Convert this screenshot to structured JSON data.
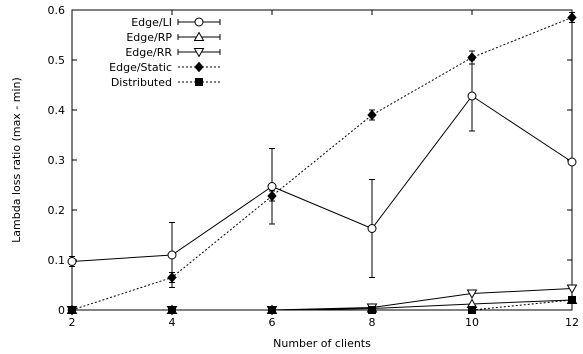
{
  "chart_data": {
    "type": "line",
    "title": "",
    "xlabel": "Number of clients",
    "ylabel": "Lambda loss ratio (max - min)",
    "xlim": [
      2,
      12
    ],
    "ylim": [
      0,
      0.6
    ],
    "x_ticks": [
      2,
      4,
      6,
      8,
      10,
      12
    ],
    "y_ticks": [
      0,
      0.1,
      0.2,
      0.3,
      0.4,
      0.5,
      0.6
    ],
    "x_tick_labels": [
      "2",
      "4",
      "6",
      "8",
      "10",
      "12"
    ],
    "y_tick_labels": [
      "0",
      "0.1",
      "0.2",
      "0.3",
      "0.4",
      "0.5",
      "0.6"
    ],
    "grid": false,
    "legend_position": "top-left",
    "series": [
      {
        "name": "Edge/LI",
        "marker": "open-circle",
        "line": "solid",
        "x": [
          2,
          4,
          6,
          8,
          10,
          12
        ],
        "y": [
          0.097,
          0.11,
          0.247,
          0.163,
          0.428,
          0.296
        ],
        "err_low": [
          0.087,
          0.045,
          0.172,
          0.065,
          0.358,
          0.296
        ],
        "err_high": [
          0.107,
          0.175,
          0.323,
          0.261,
          0.5,
          0.296
        ]
      },
      {
        "name": "Edge/RP",
        "marker": "open-triangle-up",
        "line": "solid",
        "x": [
          2,
          4,
          6,
          8,
          10,
          12
        ],
        "y": [
          0,
          0,
          0,
          0.003,
          0.012,
          0.02
        ],
        "err_low": null,
        "err_high": null
      },
      {
        "name": "Edge/RR",
        "marker": "open-triangle-down",
        "line": "solid",
        "x": [
          2,
          4,
          6,
          8,
          10,
          12
        ],
        "y": [
          0,
          0,
          0,
          0.005,
          0.033,
          0.043
        ],
        "err_low": null,
        "err_high": null
      },
      {
        "name": "Edge/Static",
        "marker": "filled-diamond",
        "line": "dotted",
        "x": [
          2,
          4,
          6,
          8,
          10,
          12
        ],
        "y": [
          0,
          0.065,
          0.228,
          0.39,
          0.505,
          0.585
        ],
        "err_low": [
          0,
          0.055,
          0.218,
          0.38,
          0.492,
          0.575
        ],
        "err_high": [
          0,
          0.075,
          0.238,
          0.4,
          0.518,
          0.595
        ]
      },
      {
        "name": "Distributed",
        "marker": "filled-square",
        "line": "dotted",
        "x": [
          2,
          4,
          6,
          8,
          10,
          12
        ],
        "y": [
          0,
          0,
          0,
          0,
          0,
          0.02
        ],
        "err_low": null,
        "err_high": null
      }
    ]
  }
}
